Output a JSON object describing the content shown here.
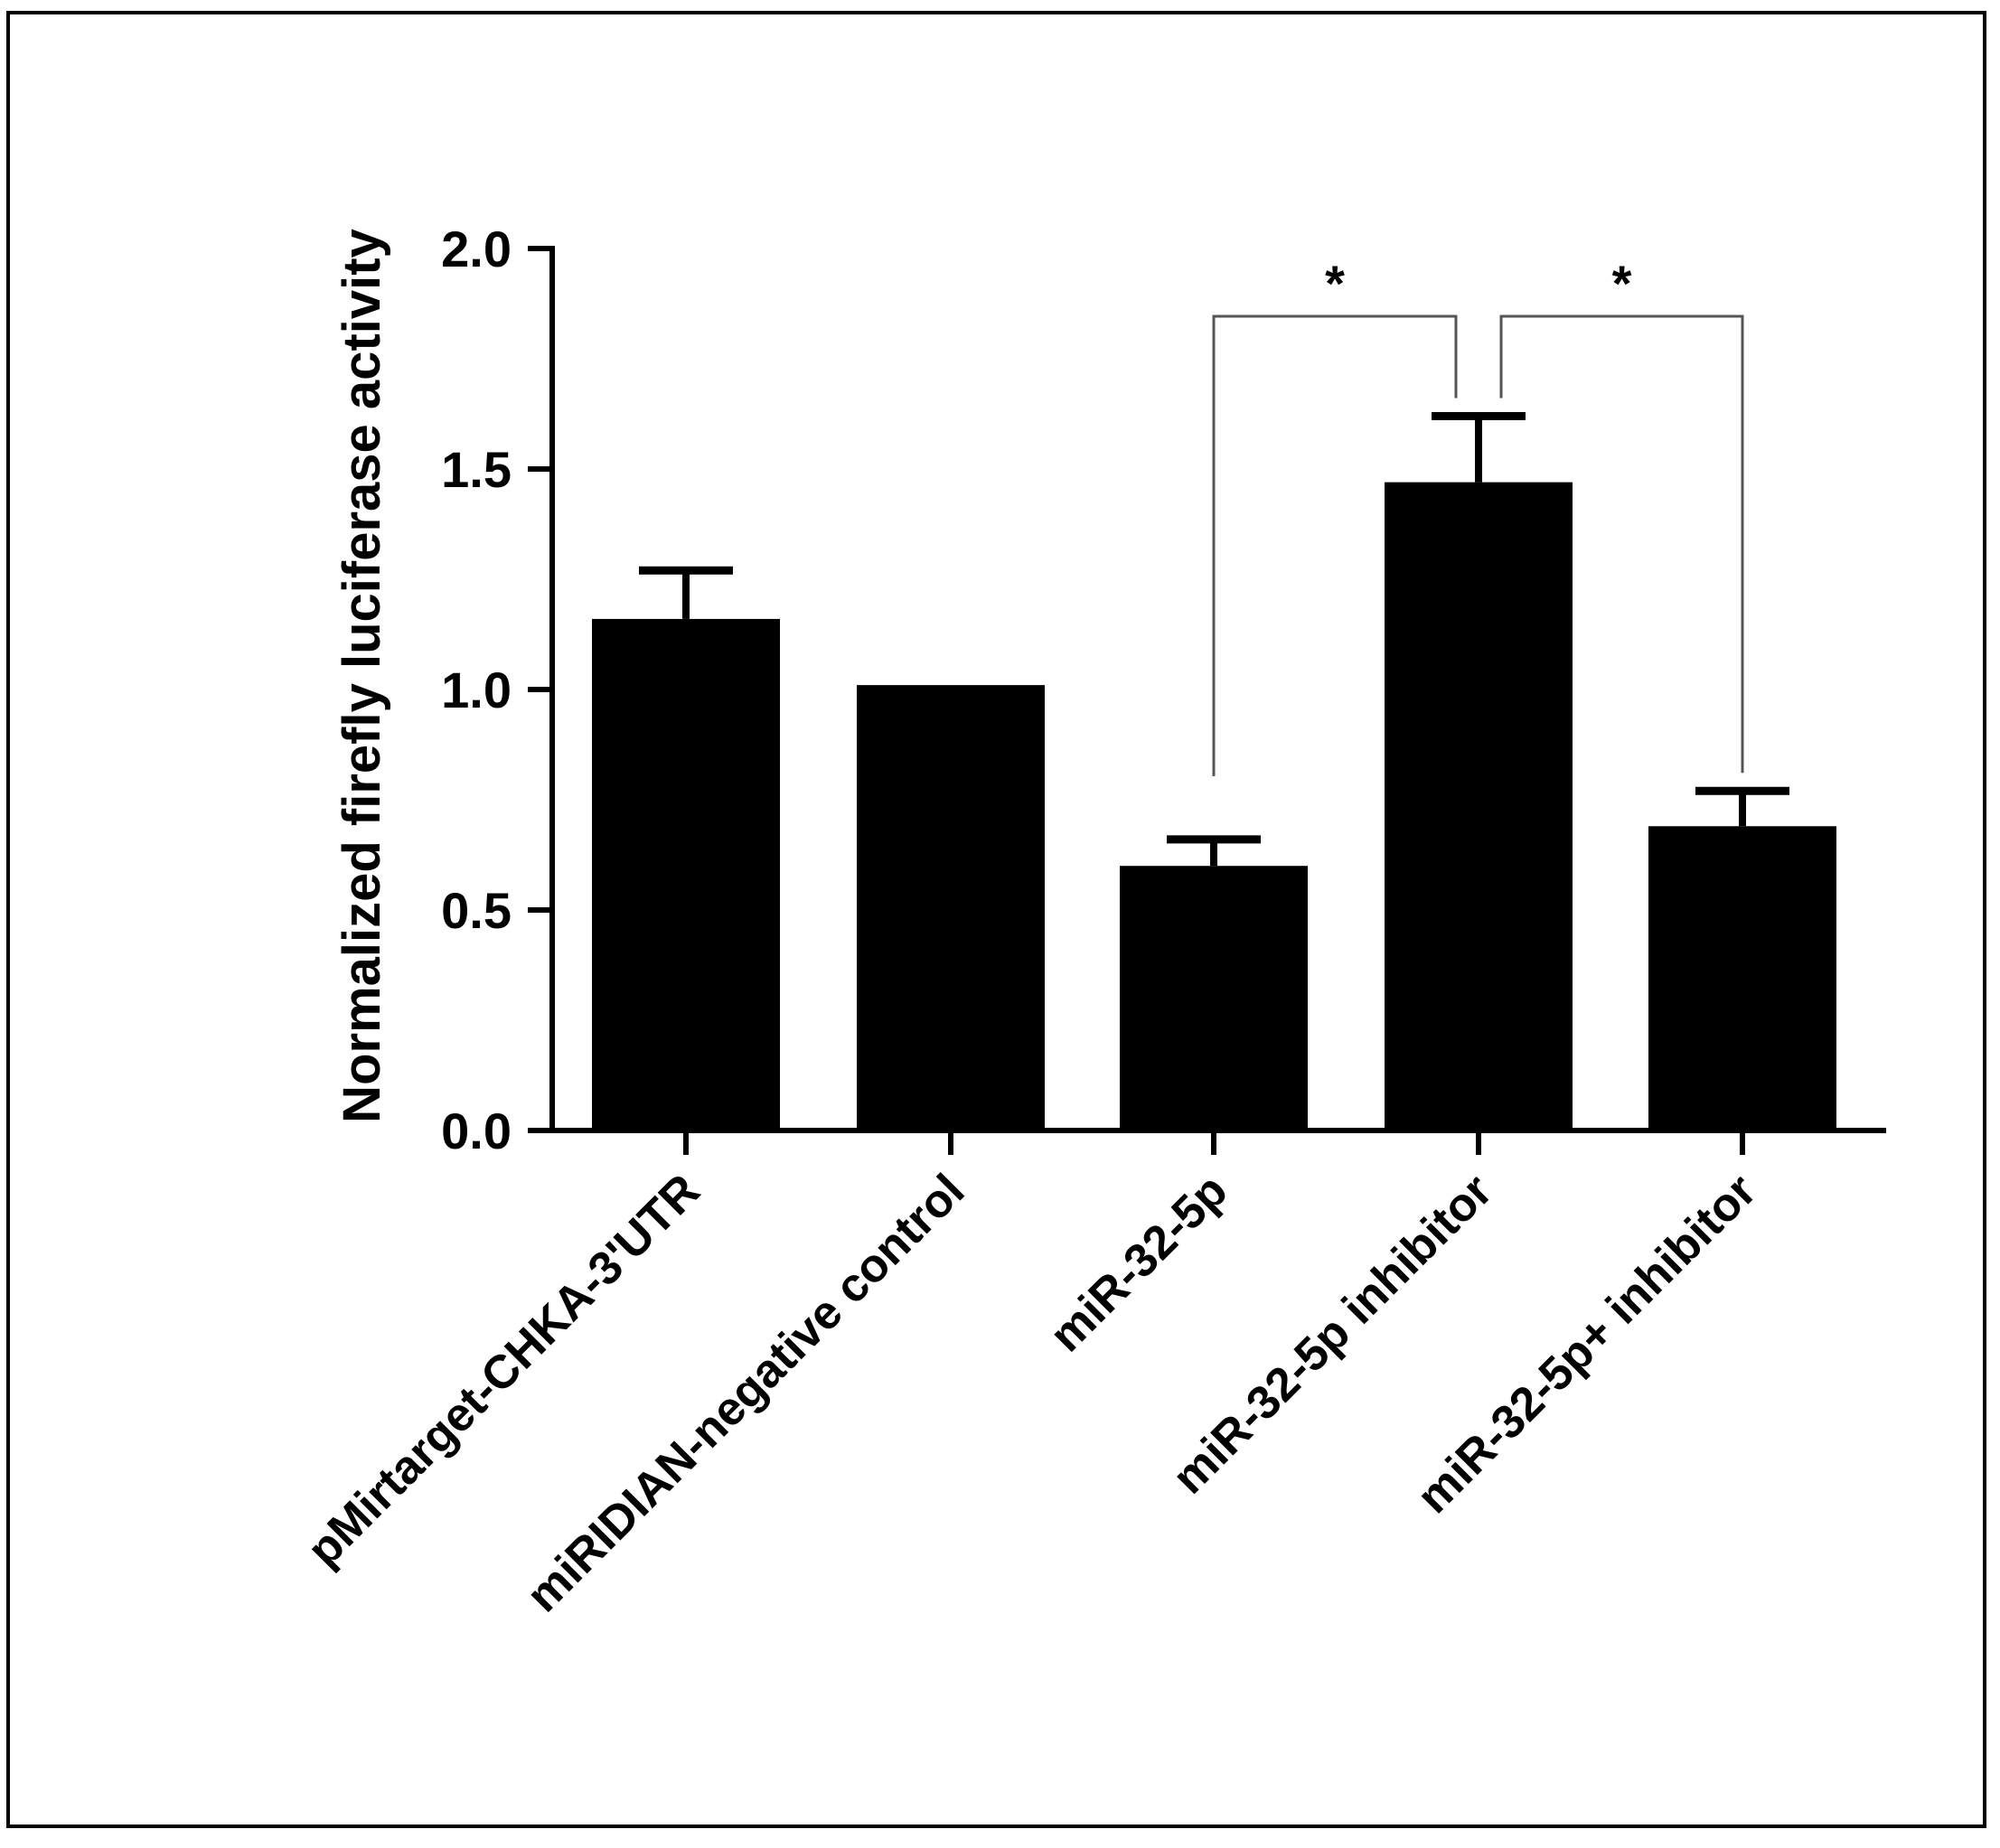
{
  "chart_data": {
    "type": "bar",
    "title": "",
    "xlabel": "",
    "ylabel": "Normalized firefly luciferase activity",
    "ylim": [
      0,
      2.0
    ],
    "yticks": [
      0.0,
      0.5,
      1.0,
      1.5,
      2.0
    ],
    "ytick_labels": [
      "0.0",
      "0.5",
      "1.0",
      "1.5",
      "2.0"
    ],
    "grid": false,
    "categories": [
      "pMirtarget-CHKA-3'UTR",
      "miRIDIAN-negative control",
      "miR-32-5p",
      "miR-32-5p inhibitor",
      "miR-32-5p+ inhibitor"
    ],
    "values": [
      1.16,
      1.01,
      0.6,
      1.47,
      0.69
    ],
    "errors": [
      0.11,
      0.0,
      0.06,
      0.15,
      0.08
    ],
    "bar_color": "#000000",
    "significance": [
      {
        "from": 2,
        "to": 3,
        "label": "*"
      },
      {
        "from": 3,
        "to": 4,
        "label": "*"
      }
    ]
  }
}
